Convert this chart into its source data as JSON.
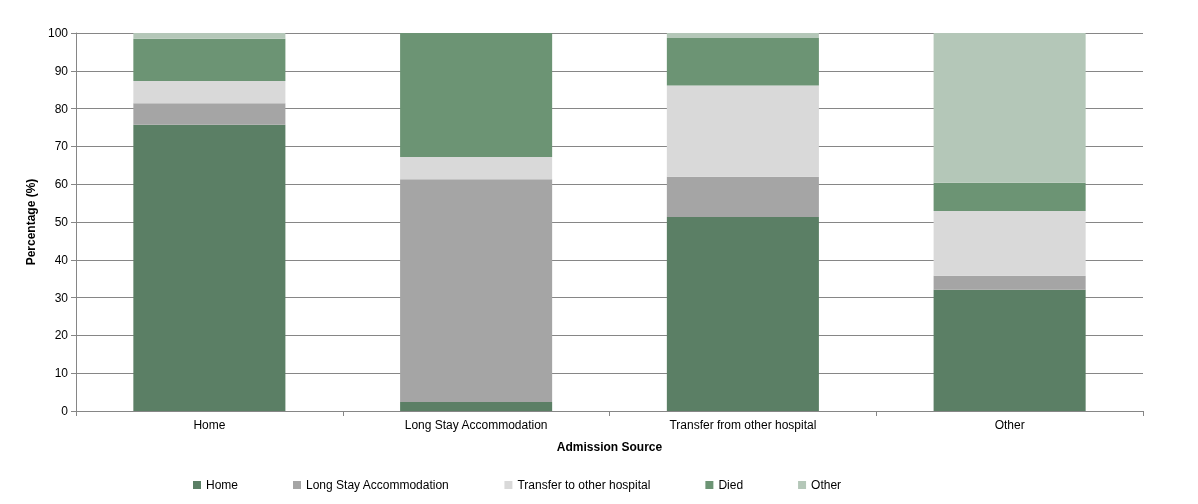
{
  "chart_data": {
    "type": "bar",
    "stacked": true,
    "xlabel": "Admission Source",
    "ylabel": "Percentage (%)",
    "categories": [
      "Home",
      "Long Stay Accommodation",
      "Transfer from other hospital",
      "Other"
    ],
    "series": [
      {
        "name": "Home",
        "color": "#5b7f65",
        "values": [
          75.7,
          2.4,
          51.3,
          32.1
        ]
      },
      {
        "name": "Long Stay Accommodation",
        "color": "#a5a5a5",
        "values": [
          5.7,
          58.9,
          10.7,
          3.7
        ]
      },
      {
        "name": "Transfer to other hospital",
        "color": "#d9d9d9",
        "values": [
          5.9,
          5.9,
          24.1,
          17.1
        ]
      },
      {
        "name": "Died",
        "color": "#6c9474",
        "values": [
          11.2,
          32.8,
          12.6,
          7.5
        ]
      },
      {
        "name": "Other",
        "color": "#b4c7b8",
        "values": [
          1.5,
          0,
          1.3,
          39.6
        ]
      }
    ],
    "ylim": [
      0,
      100
    ],
    "yticks": [
      0,
      10,
      20,
      30,
      40,
      50,
      60,
      70,
      80,
      90,
      100
    ],
    "grid": "y",
    "legend": "bottom"
  }
}
